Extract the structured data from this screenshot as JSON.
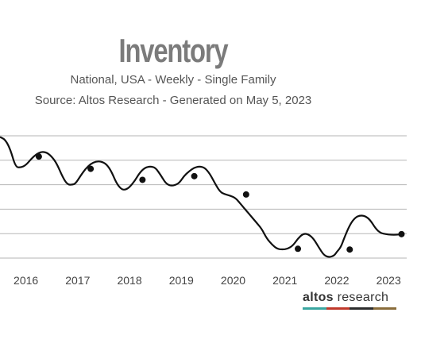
{
  "header": {
    "title": "Inventory",
    "subtitle": "National, USA - Weekly - Single Family",
    "source": "Source: Altos Research - Generated on May 5, 2023"
  },
  "brand": {
    "word1": "altos",
    "word2": " research",
    "bar_colors": [
      "#3aa6a0",
      "#c0392b",
      "#2c2c2c",
      "#8a6d3b"
    ]
  },
  "colors": {
    "line": "#111111",
    "grid": "#b5b5b5",
    "marker": "#111111"
  },
  "chart_data": {
    "type": "line",
    "title": "Inventory",
    "xlabel": "",
    "ylabel": "",
    "grid": true,
    "xlim": [
      2015.5,
      2023.35
    ],
    "ylim": [
      0,
      5
    ],
    "x_ticks": [
      "2016",
      "2017",
      "2018",
      "2019",
      "2020",
      "2021",
      "2022",
      "2023"
    ],
    "series": [
      {
        "x": [
          2015.5,
          2015.6,
          2015.7,
          2015.8,
          2015.9,
          2016.0,
          2016.1,
          2016.2,
          2016.3,
          2016.4,
          2016.5,
          2016.6,
          2016.7,
          2016.8,
          2016.9,
          2016.96,
          2017.05,
          2017.15,
          2017.25,
          2017.35,
          2017.45,
          2017.55,
          2017.65,
          2017.75,
          2017.85,
          2017.93,
          2018.0,
          2018.1,
          2018.2,
          2018.3,
          2018.4,
          2018.5,
          2018.6,
          2018.7,
          2018.8,
          2018.9,
          2018.97,
          2019.05,
          2019.15,
          2019.25,
          2019.35,
          2019.45,
          2019.55,
          2019.65,
          2019.75,
          2019.85,
          2019.95,
          2020.05,
          2020.15,
          2020.25,
          2020.35,
          2020.45,
          2020.55,
          2020.65,
          2020.75,
          2020.85,
          2020.95,
          2021.05,
          2021.15,
          2021.25,
          2021.35,
          2021.45,
          2021.55,
          2021.65,
          2021.75,
          2021.85,
          2021.95,
          2022.0,
          2022.08,
          2022.15,
          2022.25,
          2022.35,
          2022.45,
          2022.55,
          2022.65,
          2022.75,
          2022.85,
          2022.95,
          2023.05,
          2023.15,
          2023.25
        ],
        "y": [
          4.95,
          4.85,
          4.45,
          3.72,
          3.7,
          3.8,
          4.05,
          4.25,
          4.35,
          4.32,
          4.15,
          3.85,
          3.35,
          3.0,
          3.0,
          3.05,
          3.35,
          3.65,
          3.85,
          3.95,
          3.95,
          3.85,
          3.55,
          3.05,
          2.8,
          2.8,
          2.9,
          3.15,
          3.5,
          3.7,
          3.75,
          3.7,
          3.4,
          3.05,
          2.95,
          3.0,
          3.1,
          3.35,
          3.55,
          3.7,
          3.75,
          3.7,
          3.45,
          3.05,
          2.7,
          2.6,
          2.55,
          2.45,
          2.2,
          1.95,
          1.7,
          1.45,
          1.2,
          0.8,
          0.55,
          0.38,
          0.35,
          0.38,
          0.5,
          0.8,
          1.0,
          0.98,
          0.8,
          0.45,
          0.12,
          0.03,
          0.1,
          0.25,
          0.45,
          0.85,
          1.35,
          1.65,
          1.75,
          1.72,
          1.55,
          1.2,
          1.02,
          0.98,
          0.95,
          0.95,
          0.98
        ]
      }
    ],
    "markers": {
      "x": [
        2016.25,
        2017.25,
        2018.25,
        2019.25,
        2020.25,
        2021.25,
        2022.25,
        2023.25
      ],
      "y": [
        4.15,
        3.65,
        3.2,
        3.35,
        2.6,
        0.38,
        0.35,
        0.98
      ]
    }
  }
}
